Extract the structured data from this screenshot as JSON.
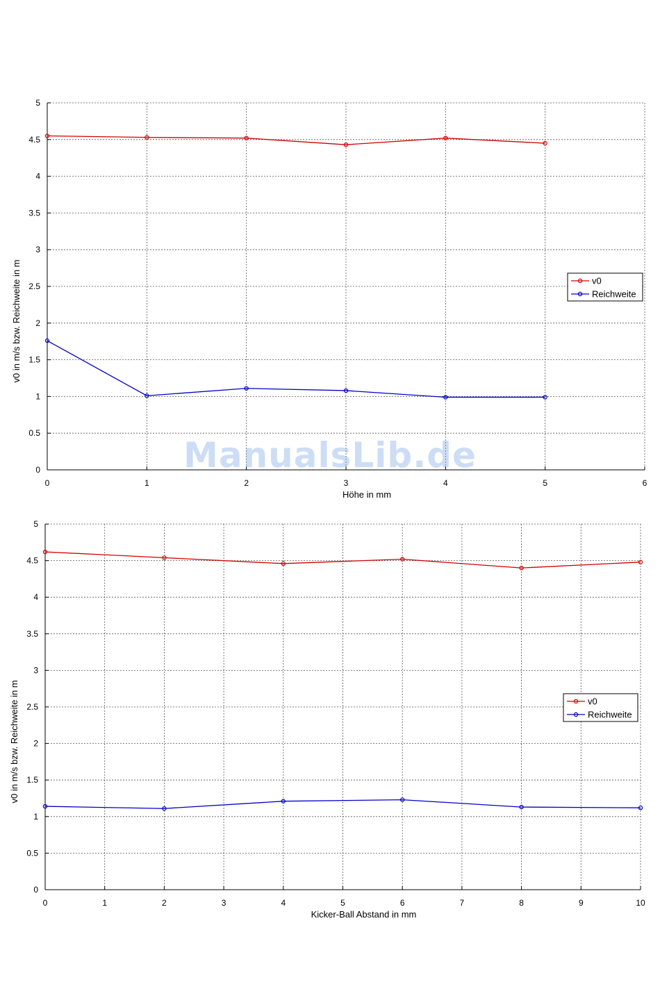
{
  "watermark": "ManualsLib.de",
  "chart_data": [
    {
      "type": "line",
      "xlabel": "Höhe in mm",
      "ylabel": "v0 in m/s bzw. Reichweite in m",
      "xlim": [
        0,
        6
      ],
      "ylim": [
        0,
        5
      ],
      "xticks": [
        0,
        1,
        2,
        3,
        4,
        5,
        6
      ],
      "yticks": [
        0,
        0.5,
        1,
        1.5,
        2,
        2.5,
        3,
        3.5,
        4,
        4.5,
        5
      ],
      "grid": true,
      "legend_position": "right",
      "x": [
        0,
        1,
        2,
        3,
        4,
        5
      ],
      "series": [
        {
          "name": "v0",
          "color": "#d00000",
          "marker": "circle",
          "values": [
            4.55,
            4.53,
            4.52,
            4.43,
            4.52,
            4.45
          ]
        },
        {
          "name": "Reichweite",
          "color": "#0000c8",
          "marker": "circle",
          "values": [
            1.76,
            1.01,
            1.11,
            1.08,
            0.99,
            0.99
          ]
        }
      ]
    },
    {
      "type": "line",
      "xlabel": "Kicker-Ball Abstand in mm",
      "ylabel": "v0 in m/s bzw. Reichweite in m",
      "xlim": [
        0,
        10
      ],
      "ylim": [
        0,
        5
      ],
      "xticks": [
        0,
        1,
        2,
        3,
        4,
        5,
        6,
        7,
        8,
        9,
        10
      ],
      "yticks": [
        0,
        0.5,
        1,
        1.5,
        2,
        2.5,
        3,
        3.5,
        4,
        4.5,
        5
      ],
      "grid": true,
      "legend_position": "right",
      "x": [
        0,
        2,
        4,
        6,
        8,
        10
      ],
      "series": [
        {
          "name": "v0",
          "color": "#d00000",
          "marker": "circle",
          "values": [
            4.62,
            4.54,
            4.46,
            4.52,
            4.4,
            4.48
          ]
        },
        {
          "name": "Reichweite",
          "color": "#0000c8",
          "marker": "circle",
          "values": [
            1.14,
            1.11,
            1.21,
            1.23,
            1.13,
            1.12
          ]
        }
      ]
    }
  ]
}
